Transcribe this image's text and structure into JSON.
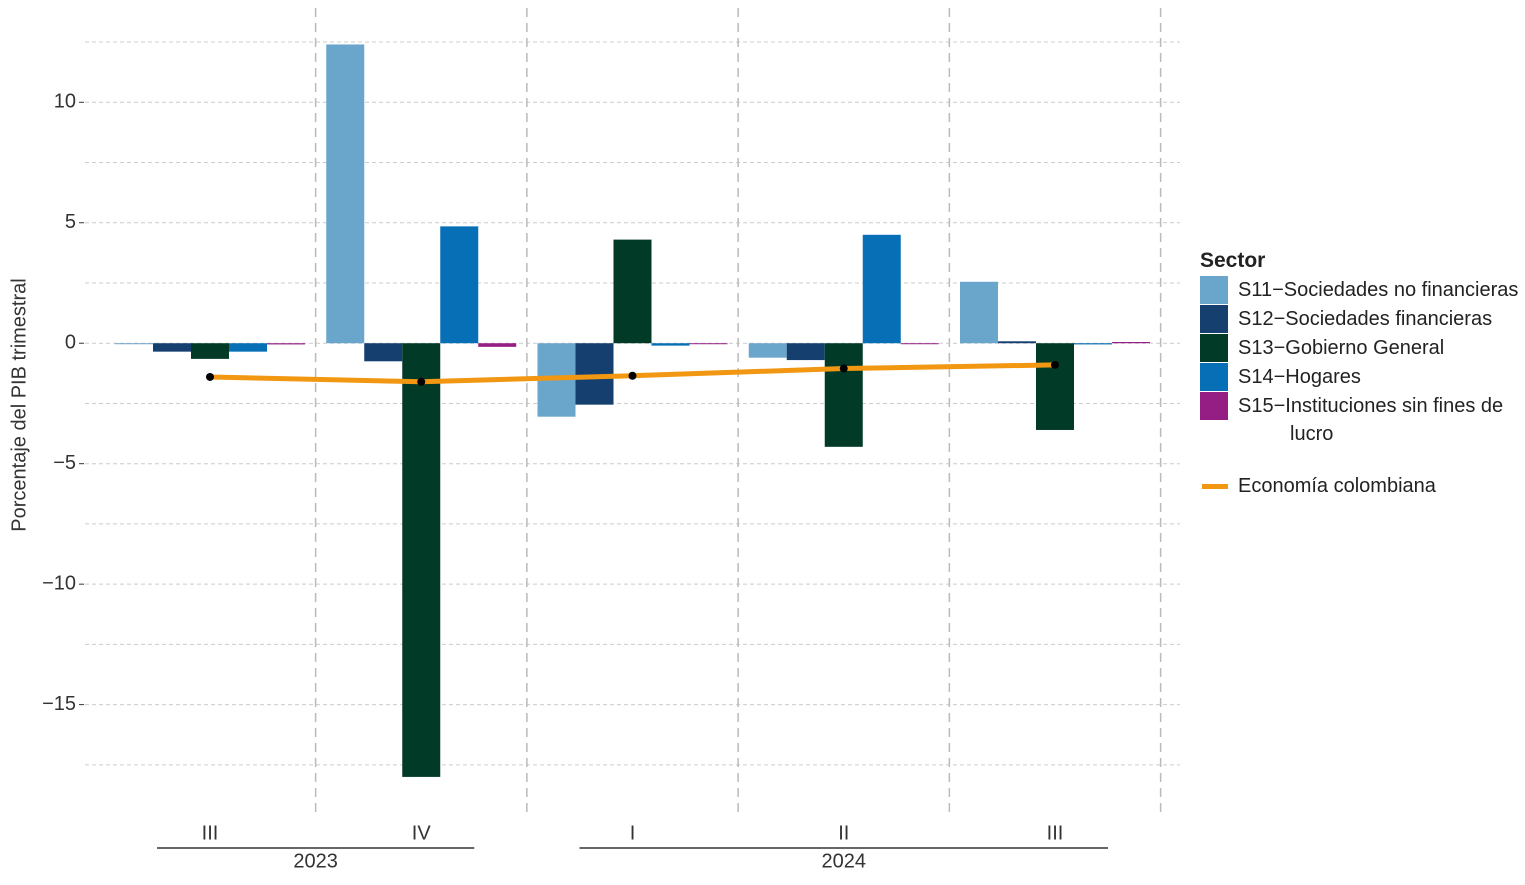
{
  "chart_data": {
    "type": "bar",
    "y_label": "Porcentaje del PIB trimestral",
    "categories": [
      "III",
      "IV",
      "I",
      "II",
      "III"
    ],
    "category_groups": [
      {
        "label": "2023",
        "size": 2
      },
      {
        "label": "2024",
        "size": 3
      }
    ],
    "ylim": [
      -19,
      13
    ],
    "yticks": [
      {
        "value": -15,
        "label": "−15"
      },
      {
        "value": -10,
        "label": "−10"
      },
      {
        "value": -5,
        "label": "−5"
      },
      0,
      5,
      10
    ],
    "minor_grid": [
      -17.5,
      -12.5,
      -7.5,
      -2.5,
      2.5,
      7.5,
      12.5
    ],
    "grid": true,
    "legend_title": "Sector",
    "series": [
      {
        "name": "S11−Sociedades no financieras",
        "type": "bar",
        "color": "#6aa5cc",
        "values": [
          -0.02,
          12.4,
          -3.05,
          -0.6,
          2.55
        ]
      },
      {
        "name": "S12−Sociedades financieras",
        "type": "bar",
        "color": "#143f6e",
        "values": [
          -0.35,
          -0.75,
          -2.55,
          -0.7,
          0.08
        ]
      },
      {
        "name": "S13−Gobierno General",
        "type": "bar",
        "color": "#013b28",
        "values": [
          -0.65,
          -18.0,
          4.3,
          -4.3,
          -3.6
        ]
      },
      {
        "name": "S14−Hogares",
        "type": "bar",
        "color": "#066fb5",
        "values": [
          -0.35,
          4.85,
          -0.1,
          4.5,
          -0.05
        ]
      },
      {
        "name": "S15−Instituciones sin fines de lucro",
        "type": "bar",
        "color": "#951e84",
        "values": [
          -0.05,
          -0.15,
          -0.03,
          -0.03,
          0.05
        ]
      },
      {
        "name": "Economía colombiana",
        "type": "line",
        "color": "#f29711",
        "values": [
          -1.4,
          -1.6,
          -1.35,
          -1.05,
          -0.9
        ]
      }
    ]
  }
}
